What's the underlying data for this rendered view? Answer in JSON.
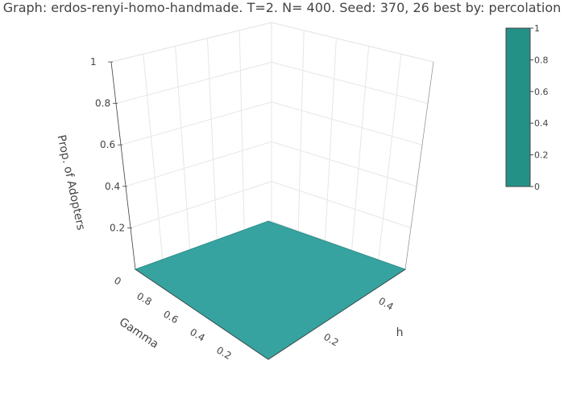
{
  "chart_data": {
    "type": "surface",
    "title": "Graph: erdos-renyi-homo-handmade. T=2. N= 400. Seed: 370, 26 best by: percolation",
    "x_axis": {
      "label": "h",
      "range": [
        0,
        0.5
      ],
      "ticks": [
        "0.2",
        "0.4"
      ]
    },
    "y_axis": {
      "label": "Gamma",
      "range": [
        0,
        1
      ],
      "ticks": [
        "0.2",
        "0.4",
        "0.6",
        "0.8",
        "0"
      ]
    },
    "z_axis": {
      "label": "Prop. of Adopters",
      "range": [
        0,
        1
      ],
      "ticks": [
        "0.2",
        "0.4",
        "0.6",
        "0.8",
        "1"
      ]
    },
    "z_values": [
      [
        0,
        0
      ],
      [
        0,
        0
      ]
    ],
    "surface_color": "#36a3a0",
    "colorbar": {
      "ticks": [
        "1",
        "0.8",
        "0.6",
        "0.4",
        "0.2",
        "0"
      ],
      "color": "#249187"
    }
  }
}
